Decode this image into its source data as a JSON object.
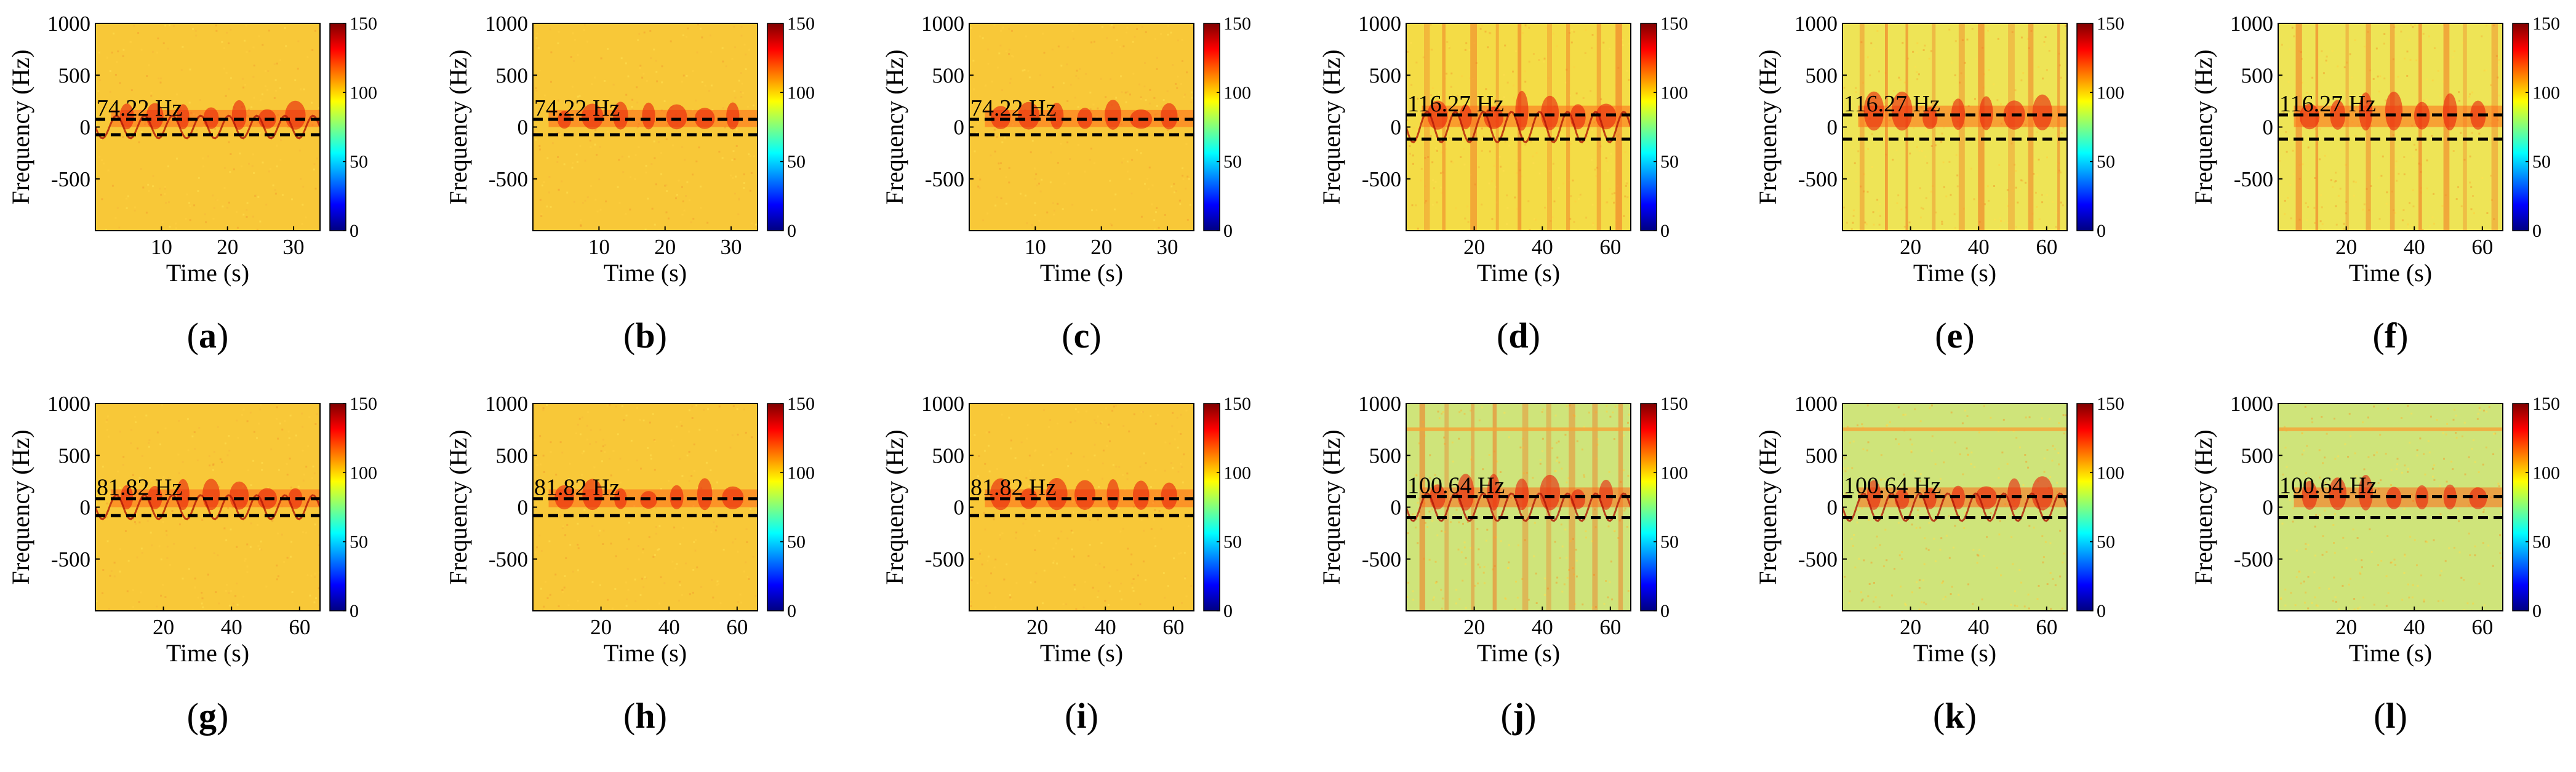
{
  "figure": {
    "colormap": "jet",
    "colorbar": {
      "min": 0,
      "max": 150,
      "ticks": [
        0,
        50,
        100,
        150
      ]
    },
    "y_axis": {
      "label": "Frequency (Hz)",
      "range": [
        -1000,
        1000
      ],
      "ticks": [
        1000,
        500,
        0,
        -500
      ]
    },
    "x_axis_label": "Time (s)"
  },
  "chart_data": [
    {
      "id": "a",
      "label": "a",
      "type": "heatmap",
      "xlim": [
        0,
        34
      ],
      "xticks": [
        10,
        20,
        30
      ],
      "annotation": "74.22 Hz",
      "dashed_lines_hz": [
        74.22,
        -74.22
      ],
      "background": "#f8c838",
      "signal": "wavy",
      "stripes": false,
      "harmonic": false
    },
    {
      "id": "b",
      "label": "b",
      "type": "heatmap",
      "xlim": [
        0,
        34
      ],
      "xticks": [
        10,
        20,
        30
      ],
      "annotation": "74.22 Hz",
      "dashed_lines_hz": [
        74.22,
        -74.22
      ],
      "background": "#f8c838",
      "signal": "upper",
      "stripes": false,
      "harmonic": false
    },
    {
      "id": "c",
      "label": "c",
      "type": "heatmap",
      "xlim": [
        0,
        34
      ],
      "xticks": [
        10,
        20,
        30
      ],
      "annotation": "74.22 Hz",
      "dashed_lines_hz": [
        74.22,
        -74.22
      ],
      "background": "#f8c838",
      "signal": "upper",
      "stripes": false,
      "harmonic": false
    },
    {
      "id": "d",
      "label": "d",
      "type": "heatmap",
      "xlim": [
        0,
        66
      ],
      "xticks": [
        20,
        40,
        60
      ],
      "annotation": "116.27 Hz",
      "dashed_lines_hz": [
        116.27,
        -116.27
      ],
      "background": "#f4dc46",
      "signal": "wavy",
      "stripes": true,
      "harmonic": false
    },
    {
      "id": "e",
      "label": "e",
      "type": "heatmap",
      "xlim": [
        0,
        66
      ],
      "xticks": [
        20,
        40,
        60
      ],
      "annotation": "116.27 Hz",
      "dashed_lines_hz": [
        116.27,
        -116.27
      ],
      "background": "#eee456",
      "signal": "none",
      "stripes": true,
      "harmonic": false
    },
    {
      "id": "f",
      "label": "f",
      "type": "heatmap",
      "xlim": [
        0,
        66
      ],
      "xticks": [
        20,
        40,
        60
      ],
      "annotation": "116.27 Hz",
      "dashed_lines_hz": [
        116.27,
        -116.27
      ],
      "background": "#eee456",
      "signal": "none",
      "stripes": true,
      "harmonic": false
    },
    {
      "id": "g",
      "label": "g",
      "type": "heatmap",
      "xlim": [
        0,
        66
      ],
      "xticks": [
        20,
        40,
        60
      ],
      "annotation": "81.82 Hz",
      "dashed_lines_hz": [
        81.82,
        -81.82
      ],
      "background": "#f8c838",
      "signal": "wavy",
      "stripes": false,
      "harmonic": false
    },
    {
      "id": "h",
      "label": "h",
      "type": "heatmap",
      "xlim": [
        0,
        66
      ],
      "xticks": [
        20,
        40,
        60
      ],
      "annotation": "81.82 Hz",
      "dashed_lines_hz": [
        81.82,
        -81.82
      ],
      "background": "#f8c838",
      "signal": "upper",
      "stripes": false,
      "harmonic": false
    },
    {
      "id": "i",
      "label": "i",
      "type": "heatmap",
      "xlim": [
        0,
        66
      ],
      "xticks": [
        20,
        40,
        60
      ],
      "annotation": "81.82 Hz",
      "dashed_lines_hz": [
        81.82,
        -81.82
      ],
      "background": "#f8c838",
      "signal": "upper",
      "stripes": false,
      "harmonic": false
    },
    {
      "id": "j",
      "label": "j",
      "type": "heatmap",
      "xlim": [
        0,
        66
      ],
      "xticks": [
        20,
        40,
        60
      ],
      "annotation": "100.64 Hz",
      "dashed_lines_hz": [
        100.64,
        -100.64
      ],
      "background": "#cfe47a",
      "signal": "wavy",
      "stripes": true,
      "harmonic": true
    },
    {
      "id": "k",
      "label": "k",
      "type": "heatmap",
      "xlim": [
        0,
        66
      ],
      "xticks": [
        20,
        40,
        60
      ],
      "annotation": "100.64 Hz",
      "dashed_lines_hz": [
        100.64,
        -100.64
      ],
      "background": "#cfe47a",
      "signal": "wavy",
      "stripes": false,
      "harmonic": true
    },
    {
      "id": "l",
      "label": "l",
      "type": "heatmap",
      "xlim": [
        0,
        66
      ],
      "xticks": [
        20,
        40,
        60
      ],
      "annotation": "100.64 Hz",
      "dashed_lines_hz": [
        100.64,
        -100.64
      ],
      "background": "#cfe47a",
      "signal": "upper",
      "stripes": false,
      "harmonic": true
    }
  ]
}
